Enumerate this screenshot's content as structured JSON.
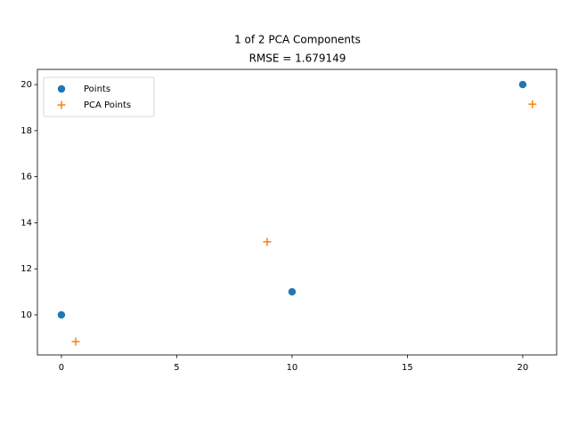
{
  "chart_data": {
    "type": "scatter",
    "title": [
      "1 of 2 PCA Components",
      "RMSE = 1.679149"
    ],
    "series": [
      {
        "name": "Points",
        "color": "#1f77b4",
        "marker": "circle",
        "x": [
          0,
          10,
          20
        ],
        "values": [
          10,
          11,
          20
        ]
      },
      {
        "name": "PCA Points",
        "color": "#ff7f0e",
        "marker": "plus",
        "x": [
          0.62,
          8.92,
          20.42
        ],
        "values": [
          8.84,
          13.17,
          19.15
        ]
      }
    ],
    "xlim": [
      -1.04,
      21.47
    ],
    "xticks": [
      0,
      5,
      10,
      15,
      20
    ],
    "ylim": [
      8.26,
      20.66
    ],
    "yticks": [
      10,
      12,
      14,
      16,
      18,
      20
    ],
    "legend": "upper left"
  }
}
